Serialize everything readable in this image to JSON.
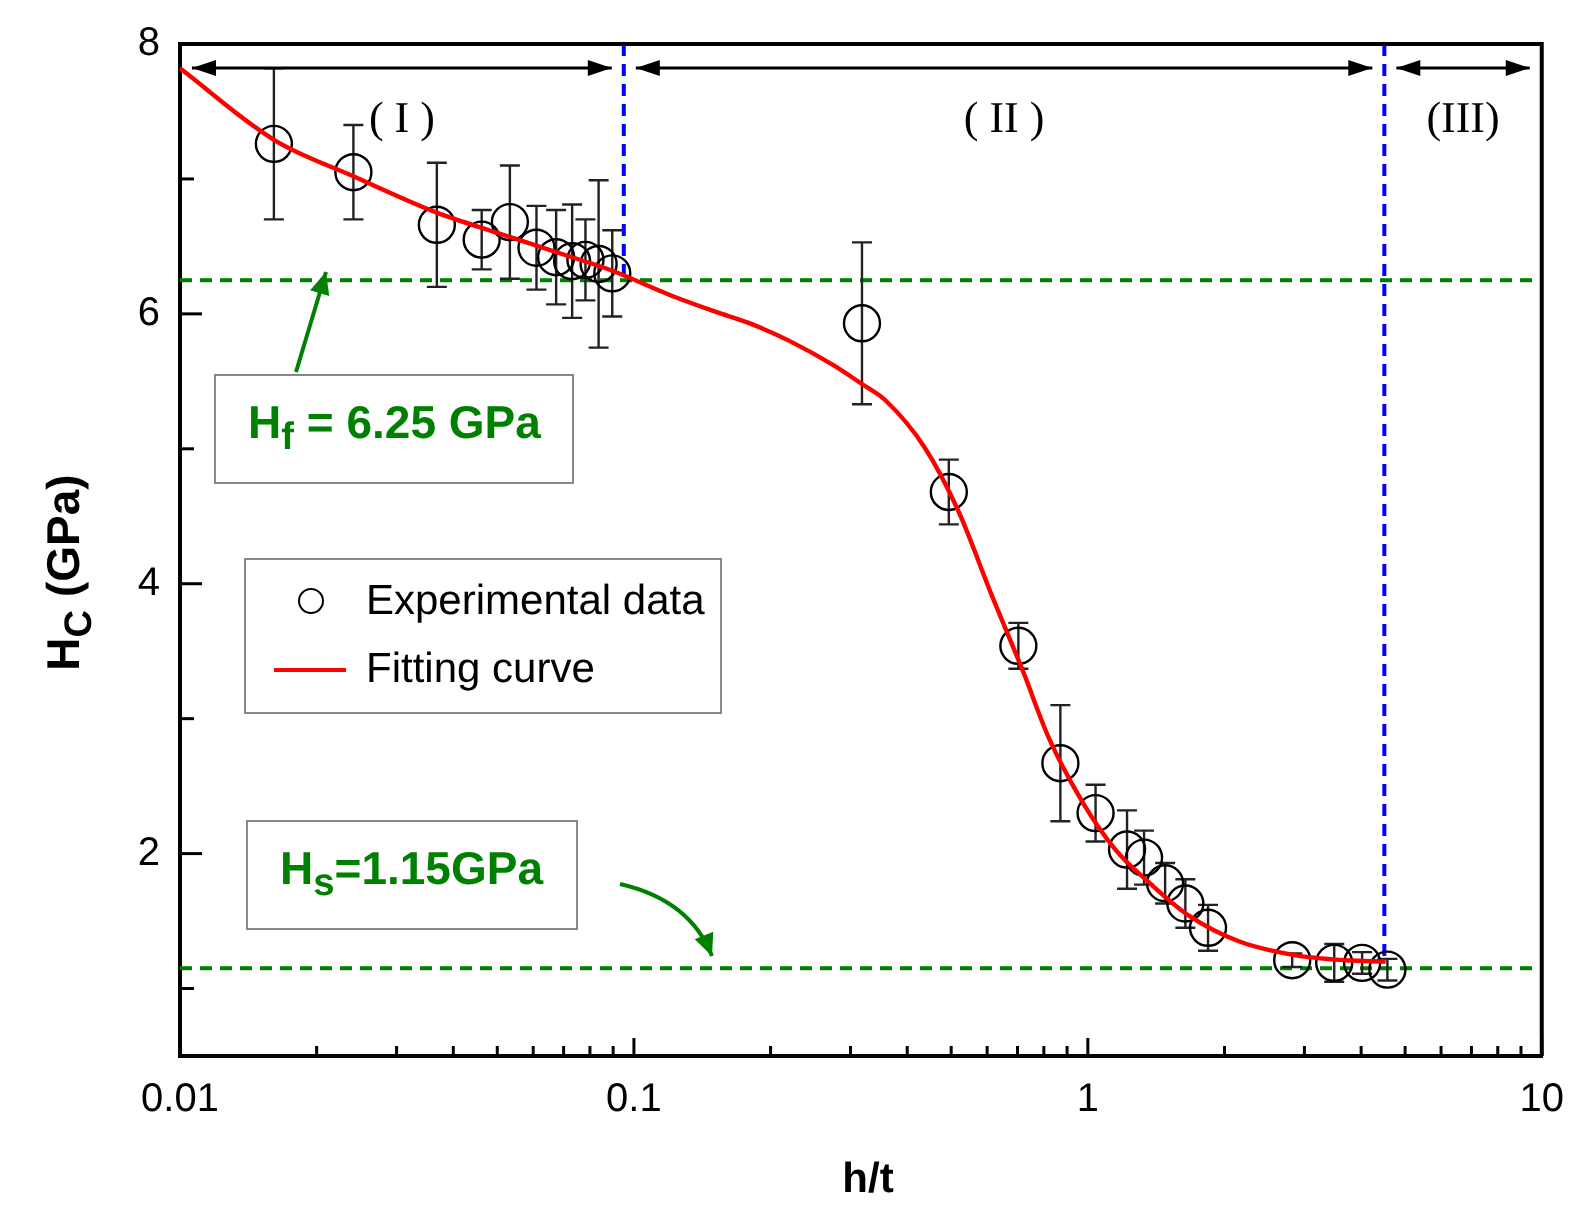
{
  "chart_data": {
    "type": "scatter",
    "xlabel": "h/t",
    "ylabel": "H$_{C}$ (GPa)",
    "log": "x",
    "xlim": [
      0.01,
      10
    ],
    "ylim": [
      0.5,
      8
    ],
    "xticks": [
      0.01,
      {
        "value": 0.02,
        "label": null
      },
      {
        "value": 0.03,
        "label": null
      },
      {
        "value": 0.04,
        "label": null
      },
      {
        "value": 0.05,
        "label": null
      },
      {
        "value": 0.06,
        "label": null
      },
      {
        "value": 0.07,
        "label": null
      },
      {
        "value": 0.08,
        "label": null
      },
      {
        "value": 0.09,
        "label": null
      },
      0.1,
      {
        "value": 0.2,
        "label": null
      },
      {
        "value": 0.3,
        "label": null
      },
      {
        "value": 0.4,
        "label": null
      },
      {
        "value": 0.5,
        "label": null
      },
      {
        "value": 0.6,
        "label": null
      },
      {
        "value": 0.7,
        "label": null
      },
      {
        "value": 0.8,
        "label": null
      },
      {
        "value": 0.9,
        "label": null
      },
      1,
      {
        "value": 2,
        "label": null
      },
      {
        "value": 3,
        "label": null
      },
      {
        "value": 4,
        "label": null
      },
      {
        "value": 5,
        "label": null
      },
      {
        "value": 6,
        "label": null
      },
      {
        "value": 7,
        "label": null
      },
      {
        "value": 8,
        "label": null
      },
      {
        "value": 9,
        "label": null
      },
      10
    ],
    "yticks": [
      {
        "value": 1,
        "label": null
      },
      2,
      {
        "value": 3,
        "label": null
      },
      4,
      {
        "value": 5,
        "label": null
      },
      6,
      {
        "value": 7,
        "label": null
      },
      8
    ],
    "grid": false,
    "legend": "left",
    "series": [
      {
        "name": "Experimental data",
        "type": "scatter",
        "marker": "circle",
        "color": "#000000",
        "x": [
          0.0161,
          0.0241,
          0.0368,
          0.0462,
          0.0533,
          0.061,
          0.0674,
          0.0731,
          0.0782,
          0.0836,
          0.0896,
          0.318,
          0.494,
          0.703,
          0.87,
          1.04,
          1.22,
          1.33,
          1.48,
          1.64,
          1.84,
          2.82,
          3.49,
          4.02,
          4.57
        ],
        "values": [
          7.26,
          7.05,
          6.66,
          6.55,
          6.68,
          6.49,
          6.42,
          6.39,
          6.4,
          6.37,
          6.3,
          5.93,
          4.68,
          3.54,
          2.67,
          2.3,
          2.03,
          1.97,
          1.78,
          1.63,
          1.45,
          1.21,
          1.19,
          1.19,
          1.14
        ],
        "errors": [
          0.56,
          0.35,
          0.46,
          0.22,
          0.42,
          0.31,
          0.35,
          0.42,
          0.3,
          0.62,
          0.32,
          0.6,
          0.24,
          0.17,
          0.43,
          0.21,
          0.29,
          0.2,
          0.15,
          0.18,
          0.17,
          0.05,
          0.14,
          0.08,
          0.08
        ]
      },
      {
        "name": "Fitting curve",
        "type": "line",
        "marker": "none",
        "line_style": "solid",
        "color": "#ff0000",
        "x": [
          0.01,
          0.0161,
          0.0241,
          0.0368,
          0.05,
          0.07,
          0.0896,
          0.12,
          0.15,
          0.183,
          0.22,
          0.275,
          0.318,
          0.358,
          0.437,
          0.52,
          0.61,
          0.72,
          0.82,
          0.974,
          1.15,
          1.36,
          1.67,
          2.15,
          2.83,
          3.69,
          4.53
        ],
        "values": [
          7.82,
          7.29,
          7.02,
          6.75,
          6.6,
          6.44,
          6.32,
          6.14,
          6.02,
          5.92,
          5.8,
          5.62,
          5.48,
          5.36,
          5.01,
          4.53,
          3.94,
          3.35,
          2.86,
          2.38,
          2.03,
          1.79,
          1.54,
          1.35,
          1.25,
          1.21,
          1.2
        ]
      }
    ],
    "ref_lines": [
      {
        "axis": "y",
        "value": 6.25,
        "label": "H$_{f}$ = 6.25 GPa",
        "color": "#008000",
        "line_style": "dashed"
      },
      {
        "axis": "y",
        "value": 1.15,
        "label": "H$_{s}$=1.15GPa",
        "color": "#008000",
        "line_style": "dashed"
      },
      {
        "axis": "x",
        "value": 0.095,
        "color": "#0000ff",
        "line_style": "dashed"
      },
      {
        "axis": "x",
        "value": 4.5,
        "color": "#0000ff",
        "line_style": "dashed"
      }
    ],
    "annotations": [
      "( I )",
      "( II )",
      "(III)"
    ]
  }
}
